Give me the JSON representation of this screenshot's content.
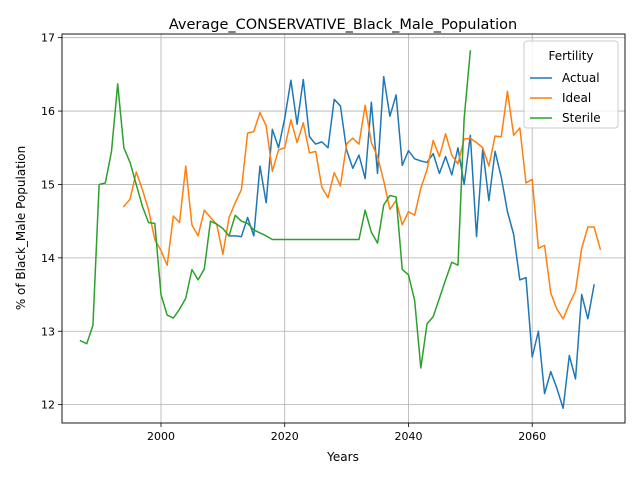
{
  "chart_data": {
    "type": "line",
    "title": "Average_CONSERVATIVE_Black_Male_Population",
    "xlabel": "Years",
    "ylabel": "% of Black_Male Population",
    "xlim": [
      1984,
      2075
    ],
    "ylim": [
      11.75,
      17.05
    ],
    "xticks": [
      2000,
      2020,
      2040,
      2060
    ],
    "yticks": [
      12,
      13,
      14,
      15,
      16,
      17
    ],
    "grid": true,
    "legend": {
      "title": "Fertility",
      "position": "top-right"
    },
    "series": [
      {
        "name": "Actual",
        "color": "#1f77b4",
        "points": [
          [
            2011,
            14.3
          ],
          [
            2012,
            14.3
          ],
          [
            2013,
            14.29
          ],
          [
            2014,
            14.55
          ],
          [
            2015,
            14.3
          ],
          [
            2016,
            15.25
          ],
          [
            2017,
            14.75
          ],
          [
            2018,
            15.75
          ],
          [
            2019,
            15.5
          ],
          [
            2020,
            15.9
          ],
          [
            2021,
            16.42
          ],
          [
            2022,
            15.82
          ],
          [
            2023,
            16.43
          ],
          [
            2024,
            15.65
          ],
          [
            2025,
            15.55
          ],
          [
            2026,
            15.58
          ],
          [
            2027,
            15.5
          ],
          [
            2028,
            16.16
          ],
          [
            2029,
            16.07
          ],
          [
            2030,
            15.47
          ],
          [
            2031,
            15.22
          ],
          [
            2032,
            15.4
          ],
          [
            2033,
            15.08
          ],
          [
            2034,
            16.12
          ],
          [
            2035,
            15.15
          ],
          [
            2036,
            16.47
          ],
          [
            2037,
            15.93
          ],
          [
            2038,
            16.22
          ],
          [
            2039,
            15.26
          ],
          [
            2040,
            15.46
          ],
          [
            2041,
            15.35
          ],
          [
            2042,
            15.32
          ],
          [
            2043,
            15.3
          ],
          [
            2044,
            15.42
          ],
          [
            2045,
            15.15
          ],
          [
            2046,
            15.38
          ],
          [
            2047,
            15.13
          ],
          [
            2048,
            15.5
          ],
          [
            2049,
            15.0
          ],
          [
            2050,
            15.67
          ],
          [
            2051,
            14.29
          ],
          [
            2052,
            15.48
          ],
          [
            2053,
            14.78
          ],
          [
            2054,
            15.45
          ],
          [
            2055,
            15.1
          ],
          [
            2056,
            14.63
          ],
          [
            2057,
            14.32
          ],
          [
            2058,
            13.7
          ],
          [
            2059,
            13.73
          ],
          [
            2060,
            12.65
          ],
          [
            2061,
            13.0
          ],
          [
            2062,
            12.15
          ],
          [
            2063,
            12.45
          ],
          [
            2064,
            12.22
          ],
          [
            2065,
            11.95
          ],
          [
            2066,
            12.67
          ],
          [
            2067,
            12.35
          ],
          [
            2068,
            13.5
          ],
          [
            2069,
            13.17
          ],
          [
            2070,
            13.63
          ]
        ]
      },
      {
        "name": "Ideal",
        "color": "#ff7f0e",
        "points": [
          [
            1994,
            14.7
          ],
          [
            1995,
            14.8
          ],
          [
            1996,
            15.17
          ],
          [
            1997,
            14.93
          ],
          [
            1998,
            14.65
          ],
          [
            1999,
            14.25
          ],
          [
            2000,
            14.1
          ],
          [
            2001,
            13.9
          ],
          [
            2002,
            14.57
          ],
          [
            2003,
            14.48
          ],
          [
            2004,
            15.25
          ],
          [
            2005,
            14.45
          ],
          [
            2006,
            14.3
          ],
          [
            2007,
            14.65
          ],
          [
            2008,
            14.55
          ],
          [
            2009,
            14.46
          ],
          [
            2010,
            14.05
          ],
          [
            2011,
            14.55
          ],
          [
            2012,
            14.75
          ],
          [
            2013,
            14.93
          ],
          [
            2014,
            15.7
          ],
          [
            2015,
            15.72
          ],
          [
            2016,
            15.98
          ],
          [
            2017,
            15.8
          ],
          [
            2018,
            15.18
          ],
          [
            2019,
            15.47
          ],
          [
            2020,
            15.5
          ],
          [
            2021,
            15.88
          ],
          [
            2022,
            15.57
          ],
          [
            2023,
            15.84
          ],
          [
            2024,
            15.43
          ],
          [
            2025,
            15.45
          ],
          [
            2026,
            14.96
          ],
          [
            2027,
            14.82
          ],
          [
            2028,
            15.16
          ],
          [
            2029,
            14.98
          ],
          [
            2030,
            15.55
          ],
          [
            2031,
            15.63
          ],
          [
            2032,
            15.55
          ],
          [
            2033,
            16.08
          ],
          [
            2034,
            15.57
          ],
          [
            2035,
            15.38
          ],
          [
            2036,
            15.05
          ],
          [
            2037,
            14.66
          ],
          [
            2038,
            14.78
          ],
          [
            2039,
            14.45
          ],
          [
            2040,
            14.63
          ],
          [
            2041,
            14.58
          ],
          [
            2042,
            14.95
          ],
          [
            2043,
            15.2
          ],
          [
            2044,
            15.6
          ],
          [
            2045,
            15.38
          ],
          [
            2046,
            15.69
          ],
          [
            2047,
            15.4
          ],
          [
            2048,
            15.28
          ],
          [
            2049,
            15.62
          ],
          [
            2050,
            15.63
          ],
          [
            2051,
            15.57
          ],
          [
            2052,
            15.5
          ],
          [
            2053,
            15.25
          ],
          [
            2054,
            15.66
          ],
          [
            2055,
            15.65
          ],
          [
            2056,
            16.27
          ],
          [
            2057,
            15.67
          ],
          [
            2058,
            15.77
          ],
          [
            2059,
            15.02
          ],
          [
            2060,
            15.07
          ],
          [
            2061,
            14.13
          ],
          [
            2062,
            14.17
          ],
          [
            2063,
            13.52
          ],
          [
            2064,
            13.3
          ],
          [
            2065,
            13.17
          ],
          [
            2066,
            13.37
          ],
          [
            2067,
            13.55
          ],
          [
            2068,
            14.13
          ],
          [
            2069,
            14.42
          ],
          [
            2070,
            14.42
          ],
          [
            2071,
            14.12
          ]
        ]
      },
      {
        "name": "Sterile",
        "color": "#2ca02c",
        "points": [
          [
            1987,
            12.87
          ],
          [
            1988,
            12.83
          ],
          [
            1989,
            13.08
          ],
          [
            1990,
            15.0
          ],
          [
            1991,
            15.02
          ],
          [
            1992,
            15.45
          ],
          [
            1993,
            16.37
          ],
          [
            1994,
            15.5
          ],
          [
            1995,
            15.3
          ],
          [
            1996,
            15.0
          ],
          [
            1997,
            14.7
          ],
          [
            1998,
            14.48
          ],
          [
            1999,
            14.47
          ],
          [
            2000,
            13.5
          ],
          [
            2001,
            13.22
          ],
          [
            2002,
            13.18
          ],
          [
            2003,
            13.3
          ],
          [
            2004,
            13.45
          ],
          [
            2005,
            13.84
          ],
          [
            2006,
            13.7
          ],
          [
            2007,
            13.85
          ],
          [
            2008,
            14.5
          ],
          [
            2009,
            14.46
          ],
          [
            2010,
            14.4
          ],
          [
            2011,
            14.3
          ],
          [
            2012,
            14.58
          ],
          [
            2013,
            14.5
          ],
          [
            2014,
            14.47
          ],
          [
            2015,
            14.38
          ],
          [
            2016,
            14.34
          ],
          [
            2017,
            14.3
          ],
          [
            2018,
            14.25
          ],
          [
            2019,
            14.25
          ],
          [
            2020,
            14.25
          ],
          [
            2021,
            14.25
          ],
          [
            2022,
            14.25
          ],
          [
            2023,
            14.25
          ],
          [
            2024,
            14.25
          ],
          [
            2025,
            14.25
          ],
          [
            2026,
            14.25
          ],
          [
            2027,
            14.25
          ],
          [
            2028,
            14.25
          ],
          [
            2029,
            14.25
          ],
          [
            2030,
            14.25
          ],
          [
            2031,
            14.25
          ],
          [
            2032,
            14.25
          ],
          [
            2033,
            14.65
          ],
          [
            2034,
            14.35
          ],
          [
            2035,
            14.2
          ],
          [
            2036,
            14.72
          ],
          [
            2037,
            14.85
          ],
          [
            2038,
            14.83
          ],
          [
            2039,
            13.84
          ],
          [
            2040,
            13.77
          ],
          [
            2041,
            13.42
          ],
          [
            2042,
            12.5
          ],
          [
            2043,
            13.1
          ],
          [
            2044,
            13.2
          ],
          [
            2045,
            13.45
          ],
          [
            2046,
            13.7
          ],
          [
            2047,
            13.94
          ],
          [
            2048,
            13.9
          ],
          [
            2049,
            15.9
          ],
          [
            2050,
            16.82
          ]
        ]
      }
    ]
  }
}
